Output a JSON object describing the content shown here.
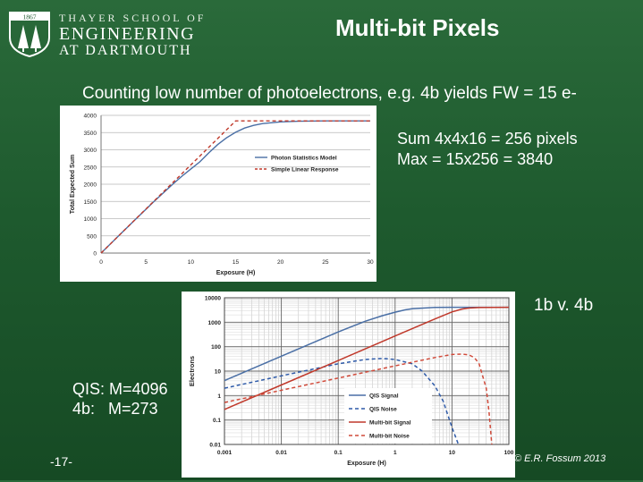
{
  "header": {
    "logo_year": "1867",
    "school_line1": "THAYER SCHOOL OF",
    "school_line2": "ENGINEERING",
    "school_line3": "AT DARTMOUTH",
    "title": "Multi-bit Pixels"
  },
  "subtitle": "Counting low number of photoelectrons, e.g. 4b yields FW = 15 e-",
  "notes": {
    "sum": "Sum 4x4x16 = 256 pixels",
    "max": "Max = 15x256 = 3840",
    "compare": "1b v. 4b",
    "qis": "QIS: M=4096",
    "fourb": "4b:   M=273"
  },
  "footer": {
    "page": "-17-",
    "copyright": "© E.R. Fossum 2013"
  },
  "colors": {
    "blue": "#4a6fa5",
    "red": "#c0392b",
    "blue_dash": "#2e5aa8",
    "red_dash": "#d04a3a",
    "grid": "#9a9a9a"
  },
  "chart_data": [
    {
      "type": "line",
      "title": "",
      "xlabel": "Exposure (H)",
      "ylabel": "Total Expected Sum",
      "xlim": [
        0,
        30
      ],
      "ylim": [
        0,
        4000
      ],
      "x_ticks": [
        0,
        5,
        10,
        15,
        20,
        25,
        30
      ],
      "y_ticks": [
        0,
        500,
        1000,
        1500,
        2000,
        2500,
        3000,
        3500,
        4000
      ],
      "grid": "horizontal",
      "legend": "center-right",
      "series": [
        {
          "name": "Photon Statistics Model",
          "style": "solid",
          "color": "#4a6fa5",
          "x": [
            0,
            2,
            4,
            6,
            8,
            9,
            10,
            11,
            12,
            13,
            14,
            15,
            16,
            17,
            18,
            20,
            22,
            25,
            30
          ],
          "y": [
            0,
            512,
            1022,
            1523,
            2003,
            2230,
            2440,
            2650,
            2910,
            3150,
            3350,
            3510,
            3630,
            3710,
            3760,
            3810,
            3828,
            3838,
            3840
          ]
        },
        {
          "name": "Simple Linear Response",
          "style": "dashed",
          "color": "#c0392b",
          "x": [
            0,
            15,
            30
          ],
          "y": [
            0,
            3840,
            3840
          ]
        }
      ]
    },
    {
      "type": "line",
      "title": "",
      "xlabel": "Exposure (H)",
      "ylabel": "Electrons",
      "x_scale": "log",
      "y_scale": "log",
      "xlim": [
        0.001,
        100
      ],
      "ylim": [
        0.01,
        10000
      ],
      "x_ticks": [
        0.001,
        0.01,
        0.1,
        1,
        10,
        100
      ],
      "x_tick_labels": [
        "0.001",
        "0.01",
        "0.1",
        "1",
        "10",
        "100"
      ],
      "y_ticks": [
        0.01,
        0.1,
        1,
        10,
        100,
        1000,
        10000
      ],
      "y_tick_labels": [
        "0.01",
        "0.1",
        "1",
        "10",
        "100",
        "1000",
        "10000"
      ],
      "grid": "both",
      "legend": "bottom-center",
      "series": [
        {
          "name": "QIS Signal",
          "style": "solid",
          "color": "#4a6fa5",
          "x": [
            0.001,
            0.01,
            0.1,
            0.3,
            0.6,
            1,
            1.5,
            2,
            5,
            10,
            100
          ],
          "y": [
            4.1,
            41,
            400,
            1100,
            1850,
            2580,
            3200,
            3540,
            4040,
            4096,
            4096
          ]
        },
        {
          "name": "QIS Noise",
          "style": "dashed",
          "color": "#2e5aa8",
          "x": [
            0.001,
            0.01,
            0.1,
            0.3,
            0.6,
            1,
            2,
            3,
            5,
            7,
            10,
            13
          ],
          "y": [
            2,
            6.4,
            20,
            30,
            33,
            30,
            20,
            10,
            2.5,
            0.6,
            0.05,
            0.01
          ]
        },
        {
          "name": "Multi-bit Signal",
          "style": "solid",
          "color": "#c0392b",
          "x": [
            0.001,
            0.01,
            0.1,
            1,
            5,
            10,
            15,
            20,
            30,
            100
          ],
          "y": [
            0.27,
            2.7,
            27,
            273,
            1360,
            2640,
            3450,
            3800,
            4000,
            4095
          ]
        },
        {
          "name": "Multi-bit Noise",
          "style": "dashed",
          "color": "#d04a3a",
          "x": [
            0.001,
            0.01,
            0.1,
            1,
            5,
            10,
            15,
            20,
            25,
            30,
            40,
            45,
            50
          ],
          "y": [
            0.52,
            1.65,
            5.2,
            16.5,
            36,
            48,
            50,
            46,
            35,
            20,
            2,
            0.2,
            0.01
          ]
        }
      ]
    }
  ]
}
